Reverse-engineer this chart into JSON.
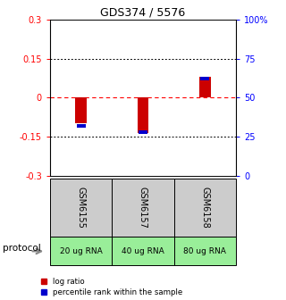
{
  "title": "GDS374 / 5576",
  "samples": [
    "GSM6155",
    "GSM6157",
    "GSM6158"
  ],
  "protocol_labels": [
    "20 ug RNA",
    "40 ug RNA",
    "80 ug RNA"
  ],
  "log_ratios": [
    -0.1,
    -0.135,
    0.08
  ],
  "percentile_ranks": [
    32,
    28,
    62
  ],
  "ylim_left": [
    -0.3,
    0.3
  ],
  "ylim_right": [
    0,
    100
  ],
  "yticks_left": [
    -0.3,
    -0.15,
    0,
    0.15,
    0.3
  ],
  "yticks_right": [
    0,
    25,
    50,
    75,
    100
  ],
  "left_tick_labels": [
    "-0.3",
    "-0.15",
    "0",
    "0.15",
    "0.3"
  ],
  "right_tick_labels": [
    "0",
    "25",
    "50",
    "75",
    "100%"
  ],
  "hline_dotted": [
    0.15,
    -0.15
  ],
  "hline_dashed": 0,
  "bar_color": "#cc0000",
  "percentile_color": "#0000cc",
  "sample_bg_color": "#cccccc",
  "protocol_bg_color": "#99ee99",
  "legend_red_label": "log ratio",
  "legend_blue_label": "percentile rank within the sample",
  "protocol_arrow_label": "protocol",
  "fig_width": 3.2,
  "fig_height": 3.36
}
